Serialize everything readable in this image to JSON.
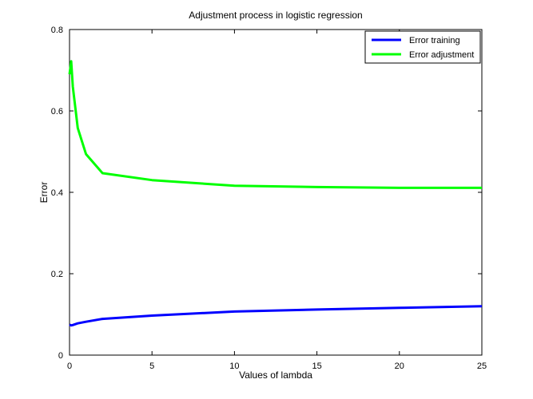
{
  "chart_data": {
    "type": "line",
    "title": "Adjustment process in logistic regression",
    "xlabel": "Values of lambda",
    "ylabel": "Error",
    "xlim": [
      0,
      25
    ],
    "ylim": [
      0,
      0.8
    ],
    "xticks": [
      0,
      5,
      10,
      15,
      20,
      25
    ],
    "xtick_labels": [
      "0",
      "5",
      "10",
      "15",
      "20",
      "25"
    ],
    "yticks": [
      0,
      0.2,
      0.4,
      0.6,
      0.8
    ],
    "ytick_labels": [
      "0",
      "0.2",
      "0.4",
      "0.6",
      "0.8"
    ],
    "grid": false,
    "legend_position": "top-right",
    "series": [
      {
        "name": "Error training",
        "color": "#0000ff",
        "x": [
          0,
          0.1,
          0.2,
          0.5,
          1,
          2,
          5,
          10,
          15,
          20,
          25
        ],
        "y": [
          0.075,
          0.073,
          0.074,
          0.078,
          0.082,
          0.089,
          0.097,
          0.107,
          0.112,
          0.116,
          0.12
        ]
      },
      {
        "name": "Error adjustment",
        "color": "#00ff00",
        "x": [
          0,
          0.1,
          0.2,
          0.5,
          1,
          2,
          5,
          10,
          15,
          20,
          25
        ],
        "y": [
          0.69,
          0.722,
          0.66,
          0.558,
          0.494,
          0.447,
          0.43,
          0.416,
          0.413,
          0.411,
          0.411
        ]
      }
    ]
  }
}
